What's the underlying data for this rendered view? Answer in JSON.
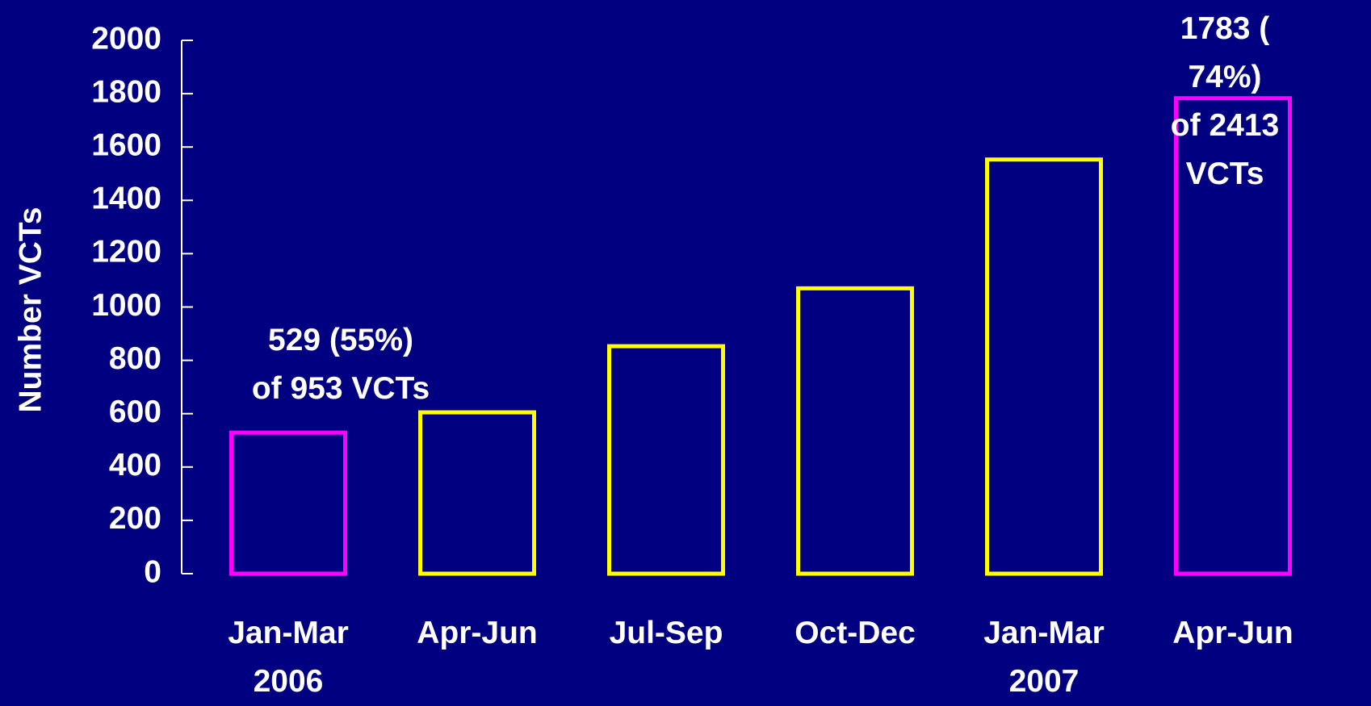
{
  "chart_data": {
    "type": "bar",
    "y_axis_label": "Number VCTs",
    "categories": [
      "Jan-Mar\n2006",
      "Apr-Jun",
      "Jul-Sep",
      "Oct-Dec",
      "Jan-Mar\n2007",
      "Apr-Jun"
    ],
    "values": [
      529,
      605,
      853,
      1070,
      1553,
      1783
    ],
    "colors": [
      "#ff00ff",
      "#ffff00",
      "#ffff00",
      "#ffff00",
      "#ffff00",
      "#ff00ff"
    ],
    "ylim": [
      0,
      2000
    ],
    "yticks": [
      0,
      200,
      400,
      600,
      800,
      1000,
      1200,
      1400,
      1600,
      1800,
      2000
    ],
    "annotations": [
      {
        "text": "529 (55%)\nof 953 VCTs",
        "category": 0
      },
      {
        "text": "1783 ( 74%)\nof 2413 VCTs",
        "category": 5
      }
    ]
  }
}
